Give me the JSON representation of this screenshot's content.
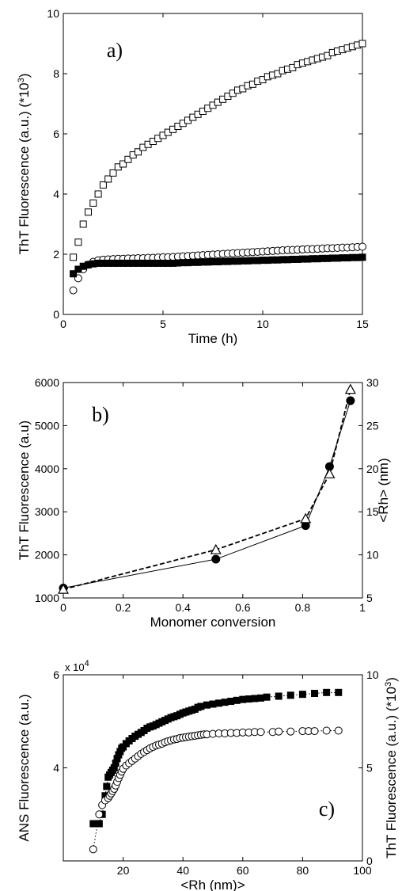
{
  "chart_data": [
    {
      "type": "scatter",
      "panel_label": "a)",
      "xlabel": "Time (h)",
      "ylabel": "ThT Fluorescence (a.u.) (*10",
      "ylabel_exp": "3",
      "ylabel_end": ")",
      "xlim": [
        0,
        15
      ],
      "ylim": [
        0,
        10
      ],
      "xticks": [
        "0",
        "5",
        "10",
        "15"
      ],
      "yticks": [
        "0",
        "2",
        "4",
        "6",
        "8",
        "10"
      ],
      "series": [
        {
          "marker": "open-square",
          "x": [
            0.5,
            0.75,
            1.0,
            1.25,
            1.5,
            1.75,
            2.0,
            2.25,
            2.5,
            2.75,
            3.0,
            3.25,
            3.5,
            3.75,
            4.0,
            4.25,
            4.5,
            4.75,
            5.0,
            5.25,
            5.5,
            5.75,
            6.0,
            6.25,
            6.5,
            6.75,
            7.0,
            7.25,
            7.5,
            7.75,
            8.0,
            8.25,
            8.5,
            8.75,
            9.0,
            9.25,
            9.5,
            9.75,
            10.0,
            10.25,
            10.5,
            10.75,
            11.0,
            11.25,
            11.5,
            11.75,
            12.0,
            12.25,
            12.5,
            12.75,
            13.0,
            13.25,
            13.5,
            13.75,
            14.0,
            14.25,
            14.5,
            14.75,
            15.0
          ],
          "y": [
            1.9,
            2.4,
            3.0,
            3.4,
            3.7,
            4.0,
            4.3,
            4.5,
            4.7,
            4.9,
            5.0,
            5.15,
            5.3,
            5.4,
            5.55,
            5.65,
            5.75,
            5.85,
            5.95,
            6.05,
            6.15,
            6.25,
            6.35,
            6.45,
            6.55,
            6.65,
            6.75,
            6.85,
            6.95,
            7.05,
            7.15,
            7.25,
            7.35,
            7.45,
            7.5,
            7.6,
            7.65,
            7.75,
            7.8,
            7.9,
            7.95,
            8.0,
            8.1,
            8.15,
            8.2,
            8.3,
            8.35,
            8.4,
            8.45,
            8.5,
            8.55,
            8.6,
            8.7,
            8.75,
            8.8,
            8.85,
            8.9,
            8.95,
            9.0
          ]
        },
        {
          "marker": "open-circle",
          "x": [
            0.5,
            0.75,
            1.0,
            1.25,
            1.5,
            1.75,
            2.0,
            2.25,
            2.5,
            2.75,
            3.0,
            3.25,
            3.5,
            3.75,
            4.0,
            4.25,
            4.5,
            4.75,
            5.0,
            5.25,
            5.5,
            5.75,
            6.0,
            6.25,
            6.5,
            6.75,
            7.0,
            7.25,
            7.5,
            7.75,
            8.0,
            8.25,
            8.5,
            8.75,
            9.0,
            9.25,
            9.5,
            9.75,
            10.0,
            10.25,
            10.5,
            10.75,
            11.0,
            11.25,
            11.5,
            11.75,
            12.0,
            12.25,
            12.5,
            12.75,
            13.0,
            13.25,
            13.5,
            13.75,
            14.0,
            14.25,
            14.5,
            14.75,
            15.0
          ],
          "y": [
            0.8,
            1.2,
            1.5,
            1.65,
            1.75,
            1.8,
            1.82,
            1.83,
            1.84,
            1.85,
            1.85,
            1.86,
            1.86,
            1.87,
            1.87,
            1.88,
            1.88,
            1.89,
            1.9,
            1.9,
            1.91,
            1.92,
            1.93,
            1.94,
            1.95,
            1.96,
            1.97,
            1.98,
            1.99,
            2.0,
            2.01,
            2.02,
            2.03,
            2.04,
            2.05,
            2.06,
            2.07,
            2.08,
            2.09,
            2.1,
            2.11,
            2.12,
            2.13,
            2.14,
            2.14,
            2.15,
            2.16,
            2.17,
            2.17,
            2.18,
            2.19,
            2.2,
            2.2,
            2.21,
            2.22,
            2.22,
            2.23,
            2.24,
            2.25
          ]
        },
        {
          "marker": "filled-square",
          "x": [
            0.5,
            0.75,
            1.0,
            1.25,
            1.5,
            1.75,
            2.0,
            2.25,
            2.5,
            2.75,
            3.0,
            3.25,
            3.5,
            3.75,
            4.0,
            4.25,
            4.5,
            4.75,
            5.0,
            5.25,
            5.5,
            5.75,
            6.0,
            6.25,
            6.5,
            6.75,
            7.0,
            7.25,
            7.5,
            7.75,
            8.0,
            8.25,
            8.5,
            8.75,
            9.0,
            9.25,
            9.5,
            9.75,
            10.0,
            10.25,
            10.5,
            10.75,
            11.0,
            11.25,
            11.5,
            11.75,
            12.0,
            12.25,
            12.5,
            12.75,
            13.0,
            13.25,
            13.5,
            13.75,
            14.0,
            14.25,
            14.5,
            14.75,
            15.0
          ],
          "y": [
            1.35,
            1.5,
            1.6,
            1.65,
            1.68,
            1.7,
            1.7,
            1.7,
            1.7,
            1.7,
            1.7,
            1.7,
            1.7,
            1.7,
            1.7,
            1.7,
            1.7,
            1.7,
            1.7,
            1.7,
            1.7,
            1.71,
            1.72,
            1.72,
            1.73,
            1.73,
            1.74,
            1.74,
            1.75,
            1.75,
            1.76,
            1.76,
            1.77,
            1.77,
            1.78,
            1.78,
            1.79,
            1.79,
            1.8,
            1.8,
            1.81,
            1.81,
            1.82,
            1.82,
            1.83,
            1.83,
            1.84,
            1.84,
            1.85,
            1.85,
            1.86,
            1.86,
            1.87,
            1.87,
            1.88,
            1.88,
            1.89,
            1.89,
            1.9
          ]
        }
      ]
    },
    {
      "type": "line",
      "panel_label": "b)",
      "xlabel": "Monomer conversion",
      "ylabel": "ThT Fluorescence (a.u)",
      "y2label": "<Rh> (nm)",
      "xlim": [
        0,
        1
      ],
      "ylim": [
        1000,
        6000
      ],
      "y2lim": [
        5,
        30
      ],
      "xticks": [
        "0",
        "0.2",
        "0.4",
        "0.6",
        "0.8",
        "1"
      ],
      "yticks": [
        "1000",
        "2000",
        "3000",
        "4000",
        "5000",
        "6000"
      ],
      "y2ticks": [
        "5",
        "10",
        "15",
        "20",
        "25",
        "30"
      ],
      "series": [
        {
          "marker": "filled-circle",
          "line": "solid",
          "axis": "left",
          "x": [
            0.0,
            0.51,
            0.81,
            0.89,
            0.96
          ],
          "y": [
            1230,
            1900,
            2680,
            4050,
            5580
          ]
        },
        {
          "marker": "open-triangle",
          "line": "dashed",
          "axis": "right",
          "x": [
            0.0,
            0.51,
            0.81,
            0.89,
            0.96
          ],
          "y": [
            6.0,
            10.6,
            14.2,
            19.4,
            29.2
          ]
        }
      ]
    },
    {
      "type": "scatter",
      "panel_label": "c)",
      "xlabel": "<Rh (nm)>",
      "ylabel": "ANS Fluorescence (a.u.)",
      "y2label": "ThT Fluorescence (a.u.) (*10",
      "y2label_exp": "3",
      "y2label_end": ")",
      "y_multiplier": "x 10",
      "y_multiplier_exp": "4",
      "xlim": [
        0,
        100
      ],
      "ylim": [
        2.0,
        6.0
      ],
      "y2lim": [
        0,
        10
      ],
      "xticks": [
        "20",
        "40",
        "60",
        "80",
        "100"
      ],
      "yticks": [
        "4",
        "6"
      ],
      "y2ticks": [
        "0",
        "5",
        "10"
      ],
      "series": [
        {
          "marker": "filled-square",
          "line": "dotted",
          "axis": "left",
          "x": [
            10,
            11,
            12,
            13,
            14,
            14.5,
            15,
            15.5,
            16,
            16.5,
            17,
            17.5,
            18,
            18.5,
            19,
            19.5,
            20,
            21,
            22,
            23,
            24,
            25,
            26,
            27,
            28,
            29,
            30,
            31,
            32,
            33,
            34,
            35,
            36,
            37,
            38,
            39,
            40,
            41,
            42,
            43,
            44,
            45,
            46,
            48,
            50,
            52,
            54,
            56,
            58,
            60,
            62,
            64,
            66,
            68,
            72,
            76,
            80,
            84,
            88,
            92
          ],
          "y": [
            2.8,
            2.8,
            2.8,
            3.0,
            3.4,
            3.6,
            3.8,
            3.85,
            3.9,
            3.95,
            4.0,
            4.1,
            4.2,
            4.28,
            4.35,
            4.42,
            4.45,
            4.52,
            4.58,
            4.63,
            4.68,
            4.72,
            4.76,
            4.8,
            4.85,
            4.88,
            4.9,
            4.93,
            4.96,
            4.99,
            5.02,
            5.05,
            5.08,
            5.1,
            5.12,
            5.15,
            5.18,
            5.2,
            5.22,
            5.24,
            5.26,
            5.3,
            5.32,
            5.35,
            5.37,
            5.39,
            5.41,
            5.43,
            5.45,
            5.47,
            5.48,
            5.49,
            5.5,
            5.52,
            5.54,
            5.56,
            5.58,
            5.6,
            5.62,
            5.62
          ]
        },
        {
          "marker": "open-circle",
          "line": "dotted",
          "axis": "left",
          "x": [
            10,
            12,
            13,
            14,
            15,
            15.5,
            16,
            16.5,
            17,
            17.5,
            18,
            18.5,
            19,
            19.5,
            20,
            21,
            22,
            23,
            24,
            25,
            26,
            27,
            28,
            29,
            30,
            31,
            32,
            33,
            34,
            35,
            36,
            37,
            38,
            39,
            40,
            41,
            42,
            43,
            44,
            45,
            46,
            47,
            48,
            50,
            52,
            54,
            56,
            58,
            60,
            62,
            64,
            66,
            70,
            72,
            76,
            80,
            82,
            84,
            88,
            92
          ],
          "y": [
            2.25,
            3.0,
            3.2,
            3.3,
            3.35,
            3.4,
            3.45,
            3.5,
            3.55,
            3.62,
            3.7,
            3.78,
            3.85,
            3.92,
            3.98,
            4.05,
            4.1,
            4.15,
            4.2,
            4.25,
            4.3,
            4.34,
            4.38,
            4.42,
            4.45,
            4.48,
            4.5,
            4.52,
            4.55,
            4.57,
            4.59,
            4.61,
            4.62,
            4.64,
            4.65,
            4.66,
            4.67,
            4.68,
            4.69,
            4.7,
            4.71,
            4.72,
            4.72,
            4.73,
            4.74,
            4.74,
            4.75,
            4.75,
            4.76,
            4.76,
            4.77,
            4.77,
            4.77,
            4.78,
            4.78,
            4.79,
            4.79,
            4.79,
            4.8,
            4.8
          ]
        }
      ]
    }
  ]
}
